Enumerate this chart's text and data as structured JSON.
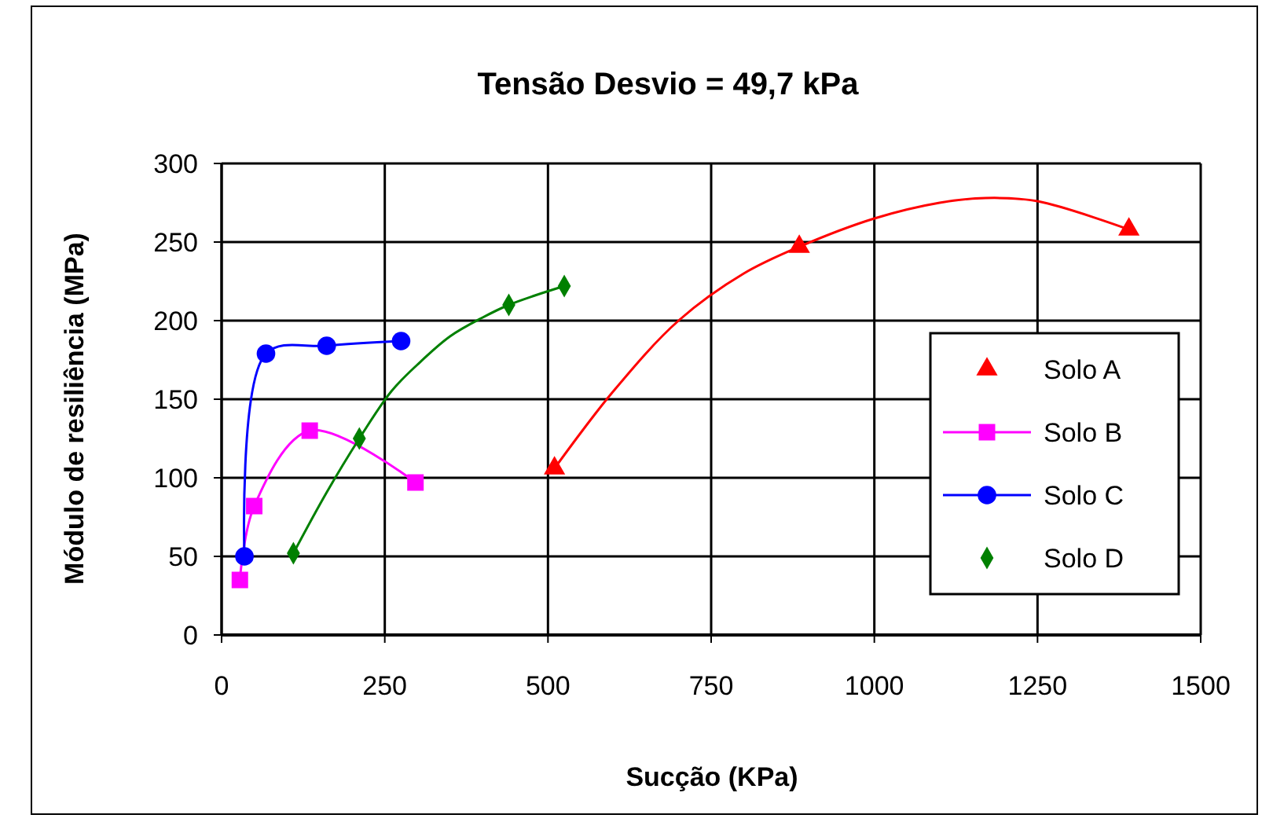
{
  "chart_data": {
    "type": "scatter",
    "title": "Tensão Desvio = 49,7 kPa",
    "xlabel": "Sucção (KPa)",
    "ylabel": "Módulo de resiliência (MPa)",
    "xlim": [
      0,
      1500
    ],
    "xticks": [
      0,
      250,
      500,
      750,
      1000,
      1250,
      1500
    ],
    "ylim": [
      0,
      300
    ],
    "yticks": [
      0,
      50,
      100,
      150,
      200,
      250,
      300
    ],
    "grid": true,
    "legend": "right",
    "series": [
      {
        "name": "Solo A",
        "type": "scatter",
        "marker": "triangle",
        "color": "#ff0000",
        "x": [
          510,
          885,
          1390
        ],
        "values": [
          106,
          247,
          258
        ]
      },
      {
        "name": "Solo B",
        "type": "line",
        "marker": "square",
        "color": "#ff00ff",
        "x": [
          28,
          50,
          135,
          297
        ],
        "values": [
          35,
          82,
          130,
          97
        ]
      },
      {
        "name": "Solo C",
        "type": "line",
        "marker": "circle",
        "color": "#0000ff",
        "x": [
          35,
          68,
          161,
          275
        ],
        "values": [
          50,
          179,
          184,
          187
        ]
      },
      {
        "name": "Solo D",
        "type": "scatter",
        "marker": "diamond",
        "color": "#008000",
        "x": [
          110,
          211,
          440,
          525
        ],
        "values": [
          52,
          125,
          210,
          222
        ]
      },
      {
        "type": "line",
        "marker": "none",
        "color": "#ff0000",
        "x": [
          510,
          600,
          700,
          800,
          885,
          1000,
          1100,
          1170,
          1250,
          1390
        ],
        "values": [
          106,
          155,
          200,
          230,
          247,
          265,
          275,
          278,
          276,
          258
        ]
      },
      {
        "type": "line",
        "marker": "none",
        "color": "#008000",
        "x": [
          110,
          160,
          211,
          260,
          300,
          350,
          400,
          440,
          480,
          525
        ],
        "values": [
          52,
          90,
          125,
          155,
          172,
          190,
          202,
          210,
          216,
          222
        ]
      }
    ]
  }
}
